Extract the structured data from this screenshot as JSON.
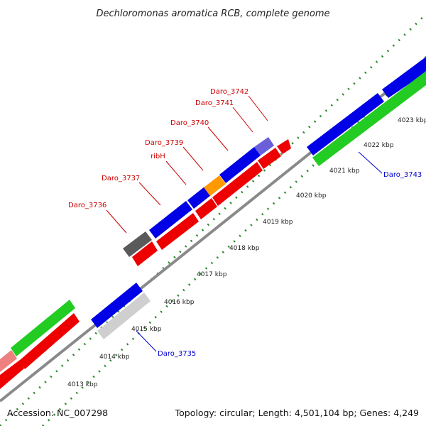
{
  "title": "Dechloromonas aromatica RCB, complete genome",
  "footer": {
    "accession": "Accession: NC_007298",
    "summary": "Topology: circular; Length: 4,501,104 bp; Genes: 4,249"
  },
  "colors": {
    "backbone": "#8a8a8a",
    "tick_dots": "#2e8b2e",
    "label_red": "#cc0000",
    "label_blue": "#0000cc",
    "blue_gene": "#0000e6",
    "red_gene": "#ee0000",
    "green_gene": "#22cc22",
    "gray_gene": "#5a5a5a",
    "light_gray_gene": "#cfcfcf",
    "orange_gene": "#ff9900",
    "purple_gene": "#6a5fd8",
    "pink_gene": "#ee8080"
  },
  "kbp_labels": [
    "4013 kbp",
    "4014 kbp",
    "4015 kbp",
    "4016 kbp",
    "4017 kbp",
    "4018 kbp",
    "4019 kbp",
    "4020 kbp",
    "4021 kbp",
    "4022 kbp",
    "4023 kbp"
  ],
  "gene_labels": [
    {
      "text": "Daro_3736",
      "color": "red"
    },
    {
      "text": "Daro_3737",
      "color": "red"
    },
    {
      "text": "ribH",
      "color": "red"
    },
    {
      "text": "Daro_3739",
      "color": "red"
    },
    {
      "text": "Daro_3740",
      "color": "red"
    },
    {
      "text": "Daro_3741",
      "color": "red"
    },
    {
      "text": "Daro_3742",
      "color": "red"
    },
    {
      "text": "Daro_3743",
      "color": "blue"
    },
    {
      "text": "Daro_3735",
      "color": "blue"
    }
  ]
}
